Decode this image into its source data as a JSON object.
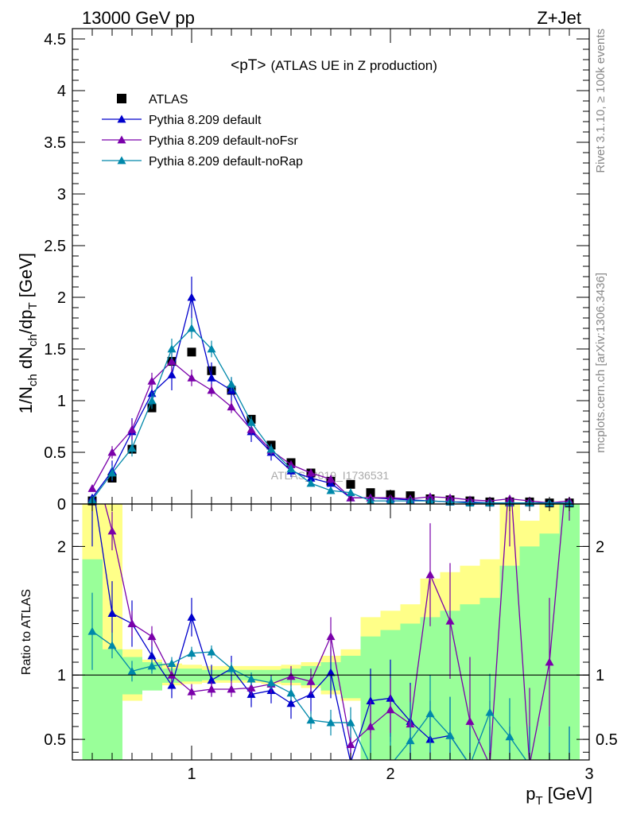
{
  "header": {
    "left": "13000 GeV pp",
    "right": "Z+Jet"
  },
  "side": {
    "rivet": "Rivet 3.1.10, ≥ 100k events",
    "mcplots": "mcplots.cern.ch [arXiv:1306.3436]"
  },
  "watermark": "ATLAS_2019_I1736531",
  "chart_data": [
    {
      "type": "line",
      "title_main": "<pT>",
      "title_sub": "(ATLAS UE in Z production)",
      "ylabel": "1/N_ch dN_ch/dp_T [GeV]",
      "ylabel_parts": {
        "a": "1/N",
        "b": "ch",
        "c": " dN",
        "d": "ch",
        "e": "/dp",
        "f": "T",
        "g": " [GeV]"
      },
      "xlim": [
        0.4,
        3.0
      ],
      "ylim": [
        0,
        4.6
      ],
      "yticks": [
        "0",
        "0.5",
        "1",
        "1.5",
        "2",
        "2.5",
        "3",
        "3.5",
        "4",
        "4.5"
      ],
      "legend_position": "top-left",
      "x": [
        0.5,
        0.6,
        0.7,
        0.8,
        0.9,
        1.0,
        1.1,
        1.2,
        1.3,
        1.4,
        1.5,
        1.6,
        1.7,
        1.8,
        1.9,
        2.0,
        2.1,
        2.2,
        2.3,
        2.4,
        2.5,
        2.6,
        2.7,
        2.8,
        2.9
      ],
      "series": [
        {
          "name": "ATLAS",
          "color": "#000000",
          "marker": "square",
          "values": [
            0.03,
            0.25,
            0.53,
            0.93,
            1.38,
            1.47,
            1.29,
            1.1,
            0.82,
            0.57,
            0.4,
            0.3,
            0.22,
            0.19,
            0.11,
            0.09,
            0.08,
            0.05,
            0.04,
            0.03,
            0.02,
            0.02,
            0.02,
            0.01,
            0.01
          ]
        },
        {
          "name": "Pythia 8.209 default",
          "color": "#0000cc",
          "marker": "triangle",
          "values": [
            0.06,
            0.32,
            0.7,
            1.07,
            1.25,
            2.0,
            1.22,
            1.1,
            0.7,
            0.5,
            0.32,
            0.25,
            0.2,
            0.06,
            0.06,
            0.05,
            0.04,
            0.03,
            0.02,
            0.02,
            0.01,
            0.01,
            0.01,
            0.01,
            0.01
          ],
          "errors": [
            0.03,
            0.1,
            0.13,
            0.12,
            0.15,
            0.2,
            0.15,
            0.12,
            0.1,
            0.08,
            0.06,
            0.05,
            0.04,
            0.03,
            0.02,
            0.02,
            0.02,
            0.02,
            0.01,
            0.01,
            0.01,
            0.01,
            0.01,
            0.01,
            0.01
          ]
        },
        {
          "name": "Pythia 8.209 default-noFsr",
          "color": "#7a00aa",
          "marker": "triangle",
          "values": [
            0.15,
            0.5,
            0.72,
            1.19,
            1.38,
            1.22,
            1.1,
            0.94,
            0.72,
            0.52,
            0.38,
            0.3,
            0.24,
            0.06,
            0.06,
            0.06,
            0.05,
            0.07,
            0.06,
            0.04,
            0.03,
            0.05,
            0.03,
            0.01,
            0.03
          ],
          "errors": [
            0.03,
            0.06,
            0.1,
            0.08,
            0.1,
            0.08,
            0.06,
            0.06,
            0.05,
            0.05,
            0.04,
            0.04,
            0.04,
            0.02,
            0.02,
            0.02,
            0.02,
            0.02,
            0.02,
            0.02,
            0.01,
            0.01,
            0.01,
            0.01,
            0.01
          ]
        },
        {
          "name": "Pythia 8.209 default-noRap",
          "color": "#0088aa",
          "marker": "triangle",
          "values": [
            0.04,
            0.3,
            0.54,
            1.0,
            1.5,
            1.7,
            1.5,
            1.16,
            0.79,
            0.53,
            0.34,
            0.2,
            0.13,
            0.11,
            0.03,
            0.03,
            0.03,
            0.03,
            0.02,
            0.01,
            0.01,
            0.01,
            0.01,
            0.01,
            0.01
          ],
          "errors": [
            0.02,
            0.07,
            0.08,
            0.08,
            0.1,
            0.1,
            0.08,
            0.07,
            0.06,
            0.05,
            0.04,
            0.03,
            0.03,
            0.02,
            0.01,
            0.01,
            0.01,
            0.01,
            0.01,
            0.01,
            0.01,
            0.01,
            0.01,
            0.01,
            0.01
          ]
        }
      ]
    },
    {
      "type": "line",
      "ylabel": "Ratio to ATLAS",
      "xlabel": "p_T [GeV]",
      "xlabel_parts": {
        "a": "p",
        "b": "T",
        "c": " [GeV]"
      },
      "xlim": [
        0.4,
        3.0
      ],
      "xticks": [
        "1",
        "2",
        "3"
      ],
      "ylim": [
        0.34,
        2.33
      ],
      "yticks": [
        "0.5",
        "1",
        "2"
      ],
      "reference_line": 1,
      "bands": {
        "bin_edges": [
          0.45,
          0.55,
          0.65,
          0.75,
          0.85,
          0.95,
          1.05,
          1.15,
          1.25,
          1.35,
          1.45,
          1.55,
          1.65,
          1.75,
          1.85,
          1.95,
          2.05,
          2.15,
          2.25,
          2.35,
          2.45,
          2.55,
          2.65,
          2.75,
          2.85,
          2.95
        ],
        "yellow": {
          "color": "#ffff88",
          "lo": [
            0.34,
            0.65,
            0.8,
            0.9,
            0.92,
            0.93,
            0.94,
            0.94,
            0.94,
            0.93,
            0.92,
            0.9,
            0.85,
            0.8,
            0.6,
            0.55,
            0.52,
            0.4,
            0.45,
            0.34,
            0.34,
            0.34,
            0.34,
            0.34,
            0.34
          ],
          "hi": [
            2.33,
            2.33,
            1.2,
            1.12,
            1.09,
            1.08,
            1.07,
            1.07,
            1.07,
            1.07,
            1.08,
            1.1,
            1.15,
            1.2,
            1.45,
            1.5,
            1.55,
            1.75,
            1.8,
            1.85,
            1.9,
            2.33,
            2.2,
            2.33,
            2.33
          ]
        },
        "green": {
          "color": "#99ff99",
          "lo": [
            0.34,
            0.34,
            0.85,
            0.88,
            0.94,
            0.95,
            0.96,
            0.96,
            0.96,
            0.95,
            0.94,
            0.92,
            0.88,
            0.82,
            0.34,
            0.34,
            0.34,
            0.34,
            0.34,
            0.34,
            0.34,
            0.34,
            0.34,
            0.34,
            0.34
          ],
          "hi": [
            1.9,
            1.2,
            1.14,
            1.1,
            1.05,
            1.05,
            1.04,
            1.04,
            1.04,
            1.04,
            1.05,
            1.07,
            1.1,
            1.15,
            1.3,
            1.35,
            1.4,
            1.45,
            1.5,
            1.55,
            1.6,
            1.85,
            2.0,
            2.1,
            2.33
          ]
        }
      },
      "series": [
        {
          "name": "Pythia 8.209 default",
          "color": "#0000cc",
          "values": [
            2.5,
            1.48,
            1.4,
            1.15,
            0.92,
            1.45,
            0.96,
            1.05,
            0.85,
            0.88,
            0.78,
            0.85,
            1.02,
            0.32,
            0.8,
            0.82,
            0.64,
            0.5,
            0.53,
            0.3,
            0.3,
            0.3,
            0.3,
            0.3,
            0.3
          ],
          "errors": [
            0.5,
            0.25,
            0.18,
            0.12,
            0.1,
            0.15,
            0.12,
            0.1,
            0.1,
            0.1,
            0.12,
            0.15,
            0.2,
            0.2,
            0.25,
            0.3,
            0.3,
            0.3,
            0.3,
            0.3,
            0.3,
            0.3,
            0.3,
            0.3,
            0.3
          ]
        },
        {
          "name": "Pythia 8.209 default-noFsr",
          "color": "#7a00aa",
          "values": [
            2.7,
            2.12,
            1.4,
            1.3,
            1.0,
            0.87,
            0.89,
            0.89,
            0.9,
            0.93,
            0.99,
            0.95,
            1.3,
            0.46,
            0.6,
            0.73,
            0.62,
            1.78,
            1.42,
            0.64,
            0.3,
            2.6,
            0.3,
            1.1,
            2.8
          ],
          "errors": [
            0.3,
            0.15,
            0.1,
            0.08,
            0.07,
            0.06,
            0.06,
            0.06,
            0.06,
            0.07,
            0.08,
            0.1,
            0.15,
            0.15,
            0.2,
            0.25,
            0.3,
            0.4,
            0.45,
            0.5,
            0.5,
            0.6,
            0.6,
            0.5,
            0.6
          ]
        },
        {
          "name": "Pythia 8.209 default-noRap",
          "color": "#0088aa",
          "values": [
            1.34,
            1.23,
            1.03,
            1.07,
            1.09,
            1.17,
            1.18,
            1.05,
            0.97,
            0.94,
            0.86,
            0.65,
            0.63,
            0.63,
            0.3,
            0.3,
            0.49,
            0.7,
            0.53,
            0.3,
            0.71,
            0.52,
            0.3,
            0.3,
            0.3
          ],
          "errors": [
            0.3,
            0.1,
            0.08,
            0.06,
            0.05,
            0.05,
            0.05,
            0.05,
            0.05,
            0.05,
            0.06,
            0.07,
            0.1,
            0.12,
            0.2,
            0.25,
            0.3,
            0.3,
            0.3,
            0.3,
            0.3,
            0.3,
            0.3,
            0.3,
            0.3
          ]
        }
      ]
    }
  ]
}
